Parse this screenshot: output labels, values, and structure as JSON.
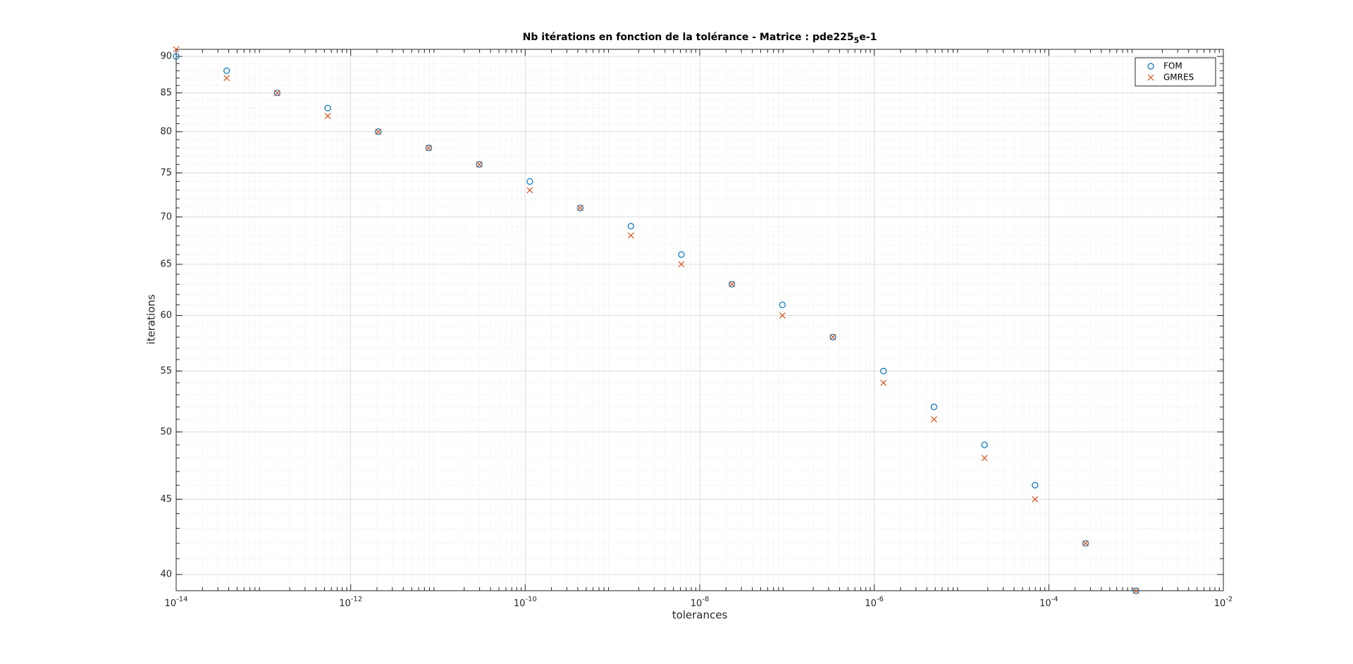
{
  "chart_data": {
    "type": "scatter",
    "title": [
      "Nb itérations en fonction de la tolérance - Matrice : pde225",
      "5",
      "e-1"
    ],
    "xlabel": "tolerances",
    "ylabel": "iterations",
    "xscale": "log",
    "yscale": "log",
    "grid": true,
    "minor_grid": true,
    "legend": "upper right",
    "x": [
      1e-14,
      3.793e-14,
      1.438e-13,
      5.456e-13,
      2.069e-12,
      7.848e-12,
      2.976e-11,
      1.129e-10,
      4.281e-10,
      1.624e-09,
      6.158e-09,
      2.336e-08,
      8.859e-08,
      3.36e-07,
      1.274e-06,
      4.833e-06,
      1.833e-05,
      6.952e-05,
      0.0002637,
      0.001
    ],
    "series": [
      {
        "name": "FOM",
        "color": "#0072bd",
        "marker": "o",
        "values": [
          90,
          88,
          85,
          83,
          80,
          78,
          76,
          74,
          71,
          69,
          66,
          63,
          61,
          58,
          55,
          52,
          49,
          46,
          42,
          39
        ]
      },
      {
        "name": "GMRES",
        "color": "#d95319",
        "marker": "x",
        "values": [
          91,
          87,
          85,
          82,
          80,
          78,
          76,
          73,
          71,
          68,
          65,
          63,
          60,
          58,
          54,
          51,
          48,
          45,
          42,
          39
        ]
      }
    ],
    "xlim": [
      1e-14,
      0.01
    ],
    "xticks": [
      {
        "value": 1e-14,
        "label": "10-14"
      },
      {
        "value": 1e-12,
        "label": "10-12"
      },
      {
        "value": 1e-10,
        "label": "10-10"
      },
      {
        "value": 1e-08,
        "label": "10-8"
      },
      {
        "value": 1e-06,
        "label": "10-6"
      },
      {
        "value": 0.0001,
        "label": "10-4"
      },
      {
        "value": 0.01,
        "label": "10-2"
      }
    ],
    "ylim": [
      39,
      91
    ],
    "yticks": [
      40,
      45,
      50,
      55,
      60,
      65,
      70,
      75,
      80,
      85,
      90
    ]
  }
}
